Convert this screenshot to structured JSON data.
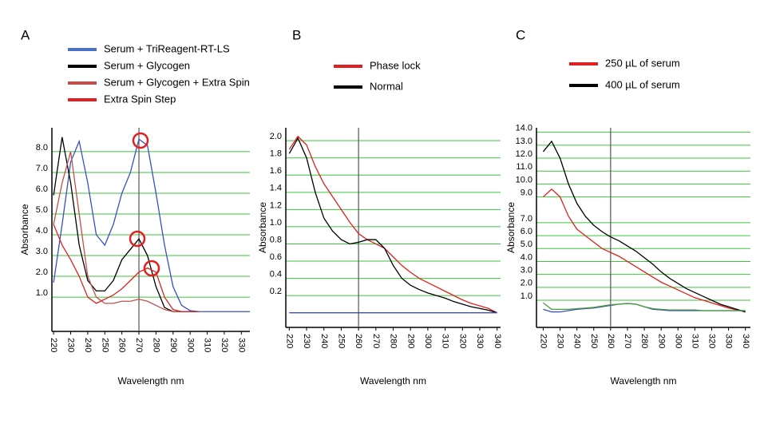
{
  "chart_data": [
    {
      "type": "line",
      "label": "A",
      "y_label": "Absorbance",
      "x_label": "Wavelength nm",
      "x": [
        220,
        225,
        230,
        235,
        240,
        245,
        250,
        255,
        260,
        265,
        270,
        275,
        280,
        285,
        290,
        295,
        300,
        305,
        310,
        315,
        320,
        325,
        330,
        335
      ],
      "xlim": [
        219,
        335
      ],
      "xticks": [
        220,
        230,
        240,
        250,
        260,
        270,
        280,
        290,
        300,
        310,
        320,
        330
      ],
      "ylim": [
        -0.65,
        9.15
      ],
      "yticks": [
        {
          "value": 1,
          "label": "1.0"
        },
        {
          "value": 2,
          "label": "2.0"
        },
        {
          "value": 3,
          "label": "3.0"
        },
        {
          "value": 4,
          "label": "4.0"
        },
        {
          "value": 5,
          "label": "5.0"
        },
        {
          "value": 6,
          "label": "6.0"
        },
        {
          "value": 7,
          "label": "7.0"
        },
        {
          "value": 8,
          "label": "8.0"
        }
      ],
      "grid": true,
      "vline": 270,
      "series": [
        {
          "name": "Serum + TriReagent-RT-LS",
          "color": "#3a4fc0",
          "legend_color": "#4a72c4",
          "values": [
            1.7,
            4.5,
            7.5,
            8.5,
            6.5,
            4.0,
            3.5,
            4.5,
            6.0,
            7.0,
            8.6,
            8.3,
            6.0,
            3.5,
            1.5,
            0.6,
            0.35,
            0.3,
            0.3,
            0.3,
            0.3,
            0.3,
            0.3,
            0.3
          ]
        },
        {
          "name": "Serum + Glycogen",
          "color": "#000000",
          "values": [
            5.9,
            8.7,
            6.5,
            3.5,
            1.8,
            1.3,
            1.3,
            1.8,
            2.8,
            3.3,
            3.8,
            3.0,
            1.5,
            0.5,
            0.3,
            0.3,
            0.3,
            0.3,
            null,
            null,
            null,
            null,
            null,
            null
          ]
        },
        {
          "name": "Serum + Glycogen + Extra Spin",
          "color": "#c0504d",
          "values": [
            4.5,
            6.5,
            8.0,
            5.0,
            2.0,
            1.0,
            0.7,
            0.7,
            0.8,
            0.8,
            0.9,
            0.8,
            0.6,
            0.4,
            0.3,
            0.3,
            0.3,
            0.3,
            null,
            null,
            null,
            null,
            null,
            null
          ]
        },
        {
          "name": "Extra Spin Step",
          "color": "#e02020",
          "values": [
            4.5,
            3.5,
            2.8,
            2.0,
            1.0,
            0.7,
            0.9,
            1.1,
            1.4,
            1.8,
            2.2,
            2.4,
            2.2,
            1.0,
            0.4,
            0.3,
            0.3,
            0.3,
            null,
            null,
            null,
            null,
            null,
            null
          ]
        }
      ]
    },
    {
      "type": "line",
      "label": "B",
      "y_label": "Absorbance",
      "x_label": "Wavelength nm",
      "x": [
        220,
        225,
        230,
        235,
        240,
        245,
        250,
        255,
        260,
        265,
        270,
        275,
        280,
        285,
        290,
        295,
        300,
        305,
        310,
        315,
        320,
        325,
        330,
        335,
        340
      ],
      "xlim": [
        218,
        342
      ],
      "xticks": [
        220,
        230,
        240,
        250,
        260,
        270,
        280,
        290,
        300,
        310,
        320,
        330,
        340
      ],
      "ylim": [
        -0.17,
        2.15
      ],
      "yticks": [
        0.2,
        0.4,
        0.6,
        0.8,
        {
          "value": 1,
          "label": "1.0"
        },
        1.2,
        1.4,
        1.6,
        1.8,
        {
          "value": 2,
          "label": "2.0"
        }
      ],
      "grid": true,
      "vline": 260,
      "series": [
        {
          "name": "Phase lock",
          "color": "#e02020",
          "values": [
            1.9,
            2.05,
            1.95,
            1.7,
            1.5,
            1.35,
            1.2,
            1.05,
            0.92,
            0.85,
            0.8,
            0.75,
            0.65,
            0.55,
            0.47,
            0.4,
            0.35,
            0.3,
            0.25,
            0.2,
            0.15,
            0.11,
            0.08,
            0.05,
            0.0
          ]
        },
        {
          "name": "Normal",
          "color": "#000000",
          "values": [
            1.85,
            2.03,
            1.8,
            1.4,
            1.1,
            0.95,
            0.85,
            0.8,
            0.82,
            0.85,
            0.85,
            0.75,
            0.55,
            0.4,
            0.32,
            0.27,
            0.23,
            0.2,
            0.17,
            0.13,
            0.1,
            0.07,
            0.05,
            0.03,
            0.0
          ]
        },
        {
          "color": "#3a4fc0",
          "values": [
            0,
            0,
            0,
            0,
            0,
            0,
            0,
            0,
            0,
            0,
            0,
            0,
            0,
            0,
            0,
            0,
            0,
            0,
            0,
            0,
            0,
            0,
            0,
            0,
            0
          ]
        }
      ]
    },
    {
      "type": "line",
      "label": "C",
      "y_label": "Absorbance",
      "x_label": "Wavelength nm",
      "x": [
        220,
        225,
        230,
        235,
        240,
        245,
        250,
        255,
        260,
        265,
        270,
        275,
        280,
        285,
        290,
        295,
        300,
        305,
        310,
        315,
        320,
        325,
        330,
        335,
        340
      ],
      "xlim": [
        216,
        343
      ],
      "xticks": [
        220,
        230,
        240,
        250,
        260,
        270,
        280,
        290,
        300,
        310,
        320,
        330,
        340
      ],
      "ylim": [
        -1.1,
        14.35
      ],
      "yticks": [
        {
          "value": 1,
          "label": "1.0"
        },
        {
          "value": 2,
          "label": "2.0"
        },
        {
          "value": 3,
          "label": "3.0"
        },
        {
          "value": 4,
          "label": "4.0"
        },
        {
          "value": 5,
          "label": "5.0"
        },
        {
          "value": 6,
          "label": "6.0"
        },
        {
          "value": 7,
          "label": "7.0"
        },
        {
          "value": 9,
          "label": "9.0"
        },
        {
          "value": 10,
          "label": "10.0"
        },
        {
          "value": 11,
          "label": "11.0"
        },
        {
          "value": 12,
          "label": "12.0"
        },
        {
          "value": 13,
          "label": "13.0"
        },
        {
          "value": 14,
          "label": "14.0"
        }
      ],
      "grid": true,
      "vline": 260,
      "series": [
        {
          "name": "250 µL of serum",
          "color": "#e02020",
          "values": [
            9.0,
            9.6,
            9.0,
            7.5,
            6.5,
            6.0,
            5.5,
            5.0,
            4.7,
            4.4,
            4.0,
            3.6,
            3.2,
            2.8,
            2.4,
            2.1,
            1.8,
            1.5,
            1.2,
            1.0,
            0.8,
            0.6,
            0.4,
            0.25,
            0.1
          ]
        },
        {
          "name": "400 µL of serum",
          "color": "#000000",
          "values": [
            12.5,
            13.3,
            12.0,
            10.0,
            8.5,
            7.5,
            6.8,
            6.3,
            5.9,
            5.6,
            5.2,
            4.8,
            4.3,
            3.8,
            3.2,
            2.7,
            2.3,
            1.9,
            1.6,
            1.3,
            1.0,
            0.7,
            0.5,
            0.3,
            0.1
          ]
        },
        {
          "color": "#3a4fc0",
          "values": [
            0.3,
            0.1,
            0.1,
            0.2,
            0.3,
            0.35,
            0.4,
            0.5,
            0.6,
            0.7,
            0.75,
            0.7,
            0.5,
            0.3,
            0.25,
            0.2,
            0.2,
            0.2,
            0.2,
            0.2,
            0.2,
            0.2,
            0.2,
            0.2,
            0.2
          ]
        },
        {
          "color": "#4a9a3a",
          "values": [
            0.8,
            0.3,
            0.3,
            0.3,
            0.35,
            0.4,
            0.45,
            0.55,
            0.65,
            0.7,
            0.75,
            0.7,
            0.5,
            0.35,
            0.3,
            0.25,
            0.25,
            0.25,
            0.25,
            0.2,
            0.2,
            0.2,
            0.2,
            0.2,
            0.2
          ]
        }
      ]
    }
  ]
}
